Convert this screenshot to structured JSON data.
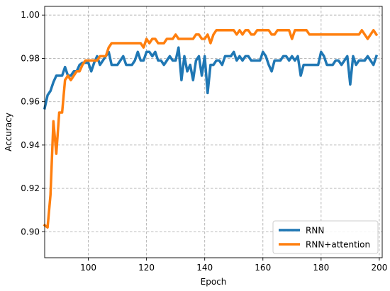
{
  "chart_data": {
    "type": "line",
    "title": "",
    "xlabel": "Epoch",
    "ylabel": "Accuracy",
    "xlim": [
      85,
      201
    ],
    "ylim": [
      0.888,
      1.004
    ],
    "xticks": [
      100,
      120,
      140,
      160,
      180,
      200
    ],
    "yticks": [
      0.9,
      0.92,
      0.94,
      0.96,
      0.98,
      1.0
    ],
    "ytick_labels": [
      "0.90",
      "0.92",
      "0.94",
      "0.96",
      "0.98",
      "1.00"
    ],
    "grid": true,
    "legend_position": "lower-right",
    "x": [
      85,
      86,
      87,
      88,
      89,
      90,
      91,
      92,
      93,
      94,
      95,
      96,
      97,
      98,
      99,
      100,
      101,
      102,
      103,
      104,
      105,
      106,
      107,
      108,
      109,
      110,
      111,
      112,
      113,
      114,
      115,
      116,
      117,
      118,
      119,
      120,
      121,
      122,
      123,
      124,
      125,
      126,
      127,
      128,
      129,
      130,
      131,
      132,
      133,
      134,
      135,
      136,
      137,
      138,
      139,
      140,
      141,
      142,
      143,
      144,
      145,
      146,
      147,
      148,
      149,
      150,
      151,
      152,
      153,
      154,
      155,
      156,
      157,
      158,
      159,
      160,
      161,
      162,
      163,
      164,
      165,
      166,
      167,
      168,
      169,
      170,
      171,
      172,
      173,
      174,
      175,
      176,
      177,
      178,
      179,
      180,
      181,
      182,
      183,
      184,
      185,
      186,
      187,
      188,
      189,
      190,
      191,
      192,
      193,
      194,
      195,
      196,
      197,
      198,
      199
    ],
    "series": [
      {
        "name": "RNN",
        "color": "#1f77b4",
        "values": [
          0.957,
          0.963,
          0.965,
          0.969,
          0.972,
          0.972,
          0.972,
          0.976,
          0.972,
          0.972,
          0.974,
          0.974,
          0.977,
          0.978,
          0.978,
          0.978,
          0.974,
          0.978,
          0.981,
          0.977,
          0.979,
          0.981,
          0.983,
          0.977,
          0.977,
          0.977,
          0.979,
          0.981,
          0.977,
          0.977,
          0.977,
          0.979,
          0.983,
          0.979,
          0.979,
          0.983,
          0.983,
          0.981,
          0.983,
          0.979,
          0.979,
          0.977,
          0.979,
          0.981,
          0.979,
          0.979,
          0.985,
          0.97,
          0.981,
          0.974,
          0.977,
          0.97,
          0.979,
          0.981,
          0.972,
          0.981,
          0.964,
          0.977,
          0.977,
          0.979,
          0.979,
          0.977,
          0.981,
          0.981,
          0.981,
          0.983,
          0.979,
          0.981,
          0.979,
          0.981,
          0.981,
          0.979,
          0.979,
          0.979,
          0.979,
          0.983,
          0.981,
          0.977,
          0.974,
          0.979,
          0.979,
          0.979,
          0.981,
          0.981,
          0.979,
          0.981,
          0.979,
          0.981,
          0.972,
          0.977,
          0.977,
          0.977,
          0.977,
          0.977,
          0.977,
          0.983,
          0.981,
          0.977,
          0.977,
          0.977,
          0.979,
          0.979,
          0.977,
          0.979,
          0.981,
          0.968,
          0.981,
          0.977,
          0.979,
          0.979,
          0.979,
          0.981,
          0.979,
          0.977,
          0.981
        ]
      },
      {
        "name": "RNN+attention",
        "color": "#ff7f0e",
        "values": [
          0.903,
          0.902,
          0.917,
          0.951,
          0.936,
          0.955,
          0.955,
          0.97,
          0.972,
          0.97,
          0.972,
          0.974,
          0.974,
          0.977,
          0.979,
          0.979,
          0.979,
          0.979,
          0.979,
          0.981,
          0.981,
          0.981,
          0.985,
          0.987,
          0.987,
          0.987,
          0.987,
          0.987,
          0.987,
          0.987,
          0.987,
          0.987,
          0.987,
          0.987,
          0.985,
          0.989,
          0.987,
          0.989,
          0.989,
          0.987,
          0.987,
          0.987,
          0.989,
          0.989,
          0.989,
          0.991,
          0.989,
          0.989,
          0.989,
          0.989,
          0.989,
          0.989,
          0.991,
          0.991,
          0.989,
          0.989,
          0.991,
          0.987,
          0.991,
          0.993,
          0.993,
          0.993,
          0.993,
          0.993,
          0.993,
          0.993,
          0.991,
          0.993,
          0.991,
          0.993,
          0.993,
          0.991,
          0.991,
          0.993,
          0.993,
          0.993,
          0.993,
          0.993,
          0.991,
          0.991,
          0.993,
          0.993,
          0.993,
          0.993,
          0.993,
          0.989,
          0.993,
          0.993,
          0.993,
          0.993,
          0.993,
          0.991,
          0.991,
          0.991,
          0.991,
          0.991,
          0.991,
          0.991,
          0.991,
          0.991,
          0.991,
          0.991,
          0.991,
          0.991,
          0.991,
          0.991,
          0.991,
          0.991,
          0.991,
          0.993,
          0.991,
          0.989,
          0.991,
          0.993,
          0.991
        ]
      }
    ]
  }
}
